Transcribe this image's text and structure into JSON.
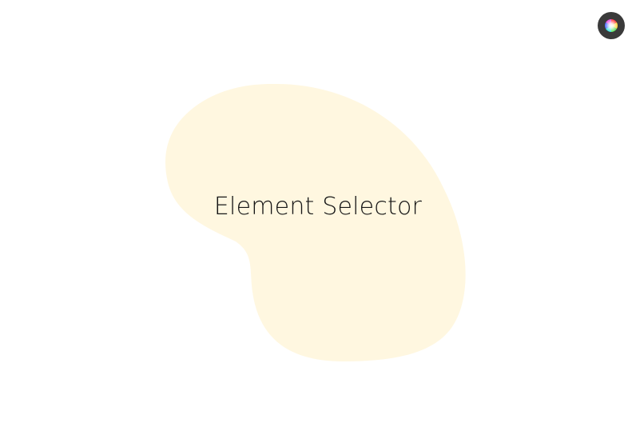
{
  "page": {
    "title": "Element Selector",
    "blob_color": "#fff7e0",
    "background_color": "#ffffff"
  },
  "color_picker": {
    "icon": "color-wheel-icon",
    "button_color": "#3a3a3a"
  }
}
